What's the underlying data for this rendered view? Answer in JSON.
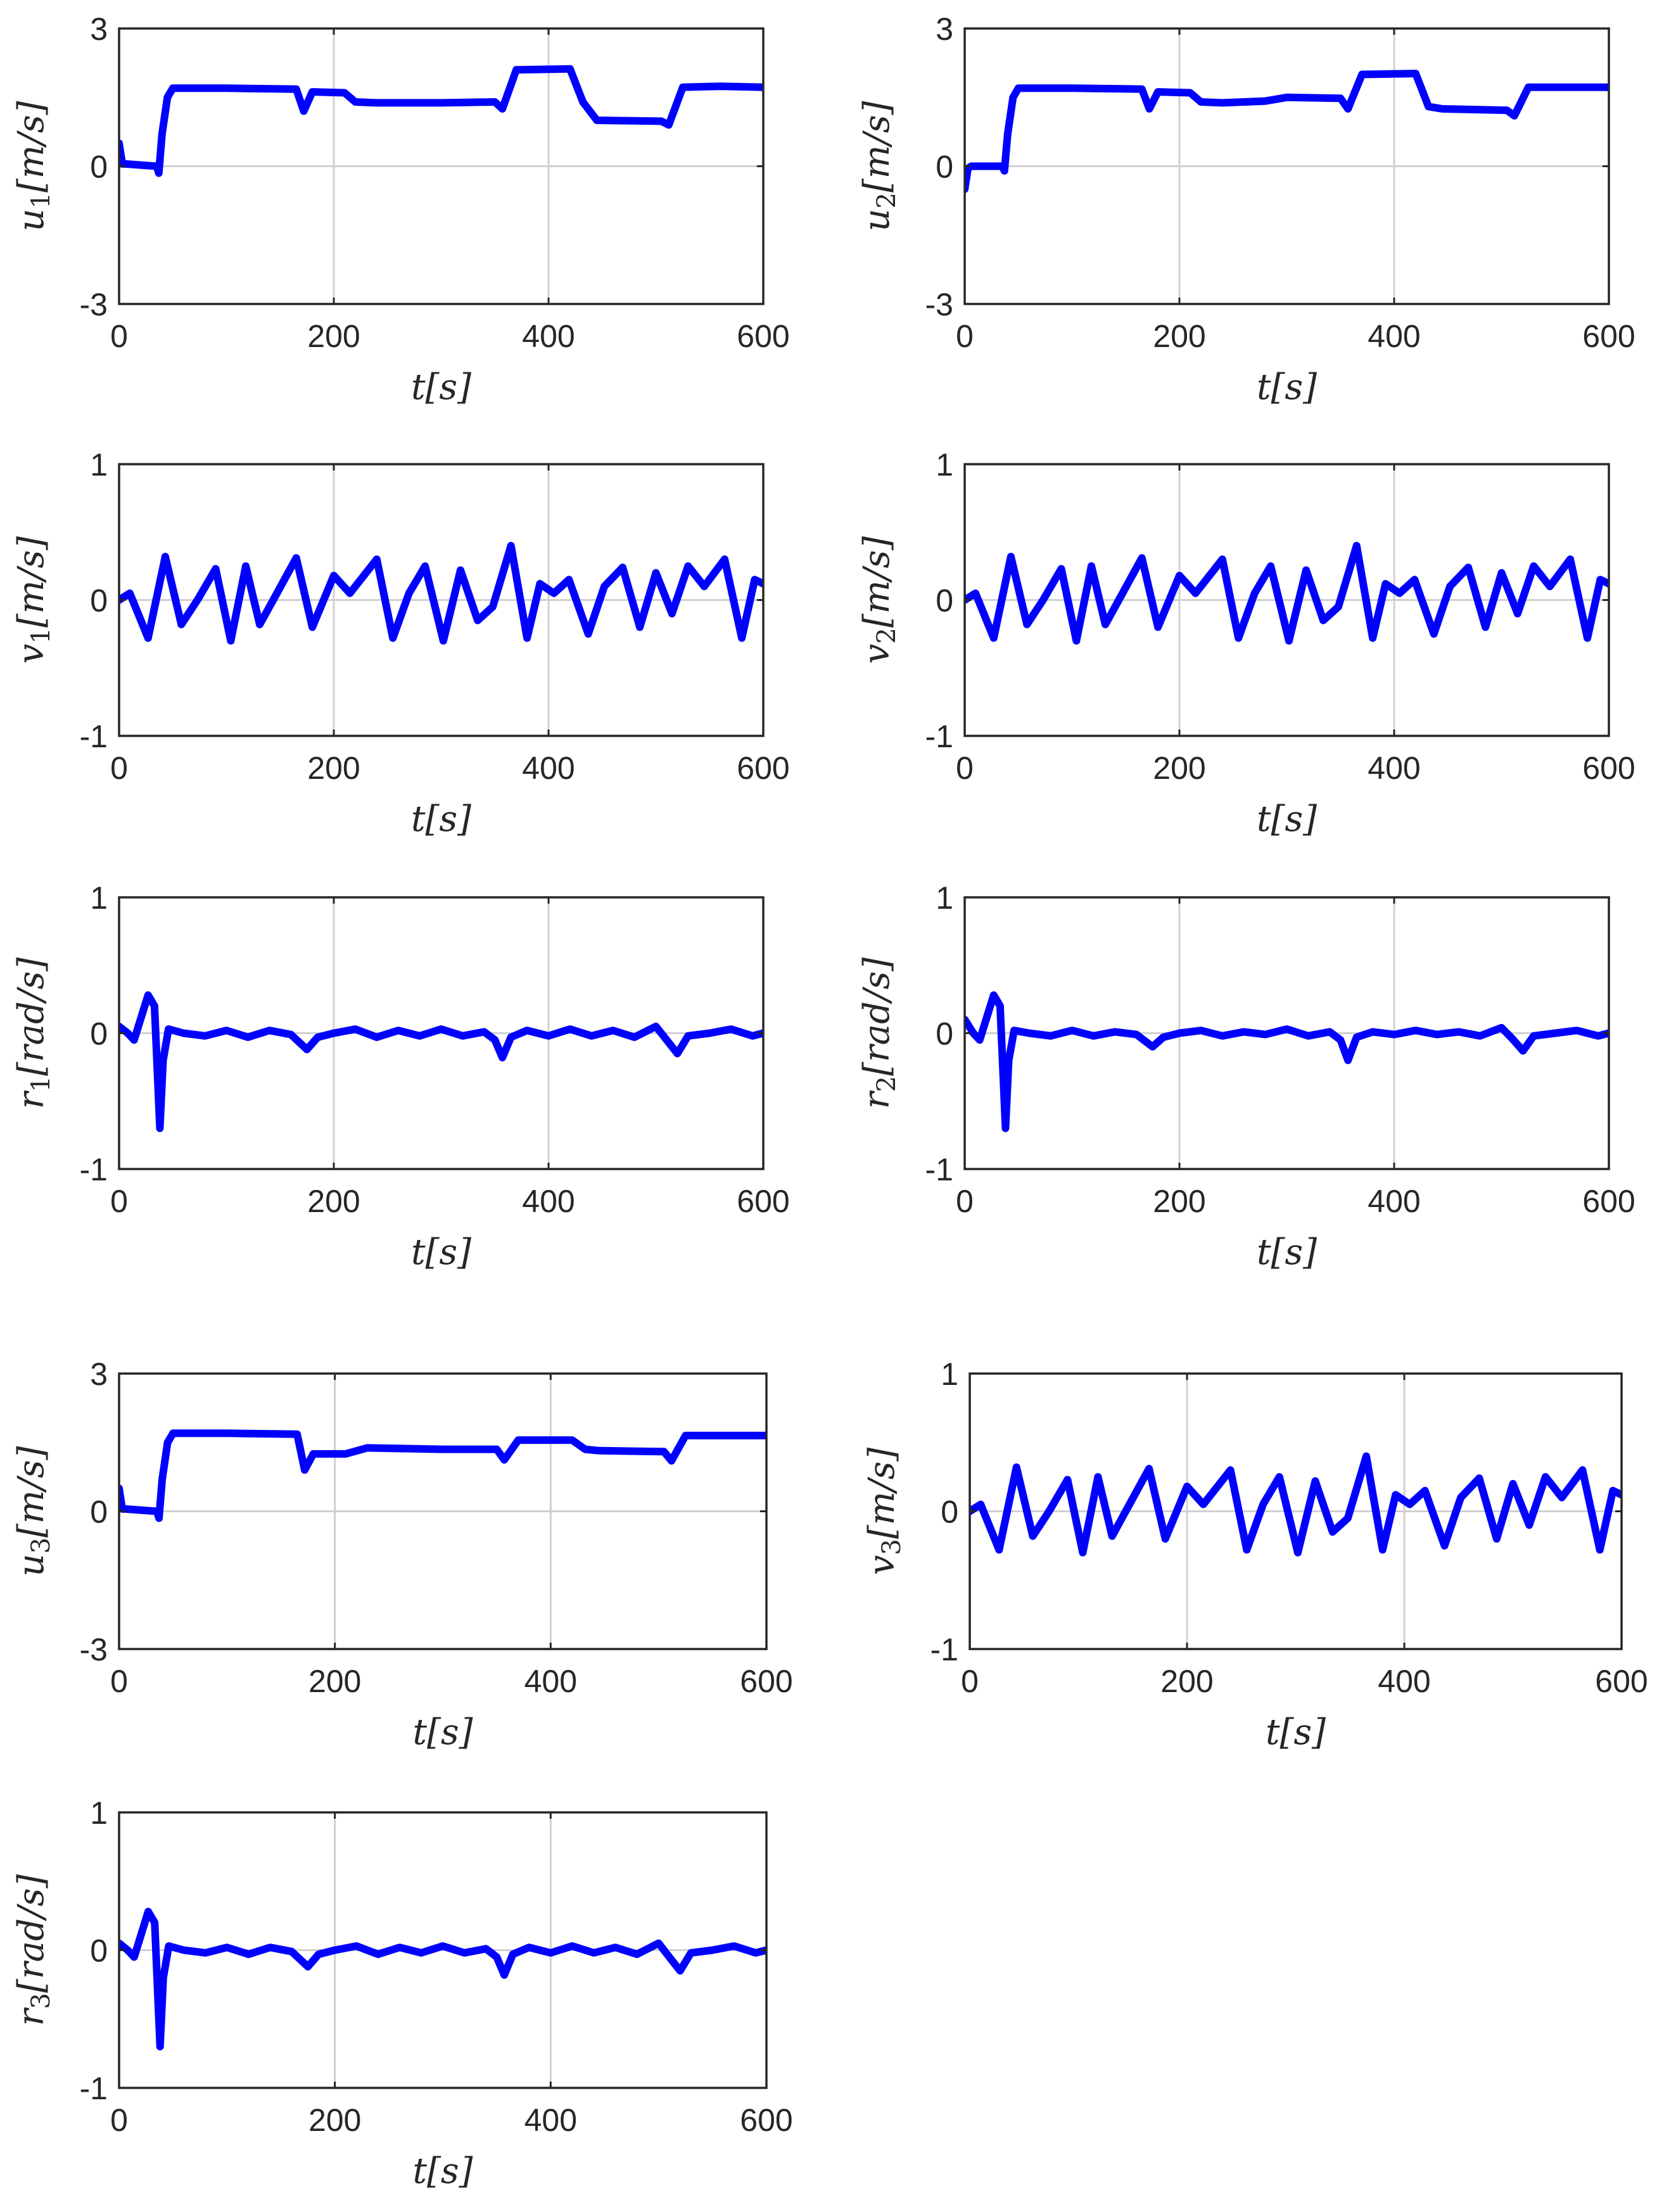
{
  "colors": {
    "series": "#0000ff",
    "axes": "#262626",
    "grid": "#d0d0d0"
  },
  "chart_data": [
    {
      "type": "line",
      "xlabel": "t[s]",
      "ylabel": {
        "sym": "u",
        "sub": "1",
        "unit": "[m/s]"
      },
      "xlim": [
        0,
        600
      ],
      "ylim": [
        -3,
        3
      ],
      "xticks": [
        0,
        200,
        400,
        600
      ],
      "yticks": [
        -3,
        0,
        3
      ],
      "grid": true,
      "series": [
        {
          "x": [
            0,
            3,
            6,
            35,
            37,
            40,
            45,
            50,
            100,
            165,
            172,
            180,
            210,
            220,
            240,
            300,
            350,
            357,
            370,
            420,
            432,
            445,
            505,
            512,
            525,
            560,
            600
          ],
          "y": [
            0.5,
            0.05,
            0.05,
            0.0,
            -0.15,
            0.7,
            1.5,
            1.7,
            1.7,
            1.68,
            1.2,
            1.62,
            1.6,
            1.4,
            1.38,
            1.38,
            1.4,
            1.25,
            2.1,
            2.12,
            1.4,
            1.0,
            0.98,
            0.9,
            1.72,
            1.74,
            1.72
          ]
        }
      ]
    },
    {
      "type": "line",
      "xlabel": "t[s]",
      "ylabel": {
        "sym": "u",
        "sub": "2",
        "unit": "[m/s]"
      },
      "xlim": [
        0,
        600
      ],
      "ylim": [
        -3,
        3
      ],
      "xticks": [
        0,
        200,
        400,
        600
      ],
      "yticks": [
        -3,
        0,
        3
      ],
      "grid": true,
      "series": [
        {
          "x": [
            0,
            3,
            6,
            35,
            37,
            40,
            45,
            50,
            100,
            165,
            172,
            180,
            210,
            220,
            240,
            280,
            300,
            350,
            357,
            370,
            420,
            432,
            445,
            505,
            512,
            525,
            560,
            600
          ],
          "y": [
            -0.5,
            -0.05,
            0.0,
            0.0,
            -0.1,
            0.7,
            1.5,
            1.7,
            1.7,
            1.68,
            1.25,
            1.62,
            1.6,
            1.4,
            1.38,
            1.42,
            1.5,
            1.48,
            1.25,
            2.0,
            2.02,
            1.3,
            1.25,
            1.22,
            1.1,
            1.72,
            1.72,
            1.72
          ]
        }
      ]
    },
    {
      "type": "line",
      "xlabel": "t[s]",
      "ylabel": {
        "sym": "v",
        "sub": "1",
        "unit": "[m/s]"
      },
      "xlim": [
        0,
        600
      ],
      "ylim": [
        -1,
        1
      ],
      "xticks": [
        0,
        200,
        400,
        600
      ],
      "yticks": [
        -1,
        0,
        1
      ],
      "grid": true,
      "series": [
        {
          "x": [
            0,
            10,
            27,
            43,
            58,
            73,
            90,
            104,
            118,
            131,
            147,
            165,
            180,
            200,
            215,
            240,
            255,
            270,
            285,
            302,
            318,
            334,
            348,
            365,
            380,
            392,
            405,
            419,
            437,
            452,
            469,
            485,
            500,
            515,
            530,
            545,
            564,
            580,
            592,
            600
          ],
          "y": [
            0,
            0.05,
            -0.28,
            0.32,
            -0.18,
            0.0,
            0.23,
            -0.3,
            0.25,
            -0.18,
            0.05,
            0.31,
            -0.2,
            0.18,
            0.05,
            0.3,
            -0.28,
            0.05,
            0.25,
            -0.3,
            0.22,
            -0.15,
            -0.05,
            0.4,
            -0.28,
            0.12,
            0.05,
            0.15,
            -0.25,
            0.1,
            0.24,
            -0.2,
            0.2,
            -0.1,
            0.25,
            0.1,
            0.3,
            -0.28,
            0.15,
            0.12
          ]
        }
      ]
    },
    {
      "type": "line",
      "xlabel": "t[s]",
      "ylabel": {
        "sym": "v",
        "sub": "2",
        "unit": "[m/s]"
      },
      "xlim": [
        0,
        600
      ],
      "ylim": [
        -1,
        1
      ],
      "xticks": [
        0,
        200,
        400,
        600
      ],
      "yticks": [
        -1,
        0,
        1
      ],
      "grid": true,
      "series": [
        {
          "x": [
            0,
            10,
            27,
            43,
            58,
            73,
            90,
            104,
            118,
            131,
            147,
            165,
            180,
            200,
            215,
            240,
            255,
            270,
            285,
            302,
            318,
            334,
            348,
            365,
            380,
            392,
            405,
            419,
            437,
            452,
            469,
            485,
            500,
            515,
            530,
            545,
            564,
            580,
            592,
            600
          ],
          "y": [
            0,
            0.05,
            -0.28,
            0.32,
            -0.18,
            0.0,
            0.23,
            -0.3,
            0.25,
            -0.18,
            0.05,
            0.31,
            -0.2,
            0.18,
            0.05,
            0.3,
            -0.28,
            0.05,
            0.25,
            -0.3,
            0.22,
            -0.15,
            -0.05,
            0.4,
            -0.28,
            0.12,
            0.05,
            0.15,
            -0.25,
            0.1,
            0.24,
            -0.2,
            0.2,
            -0.1,
            0.25,
            0.1,
            0.3,
            -0.28,
            0.15,
            0.12
          ]
        }
      ]
    },
    {
      "type": "line",
      "xlabel": "t[s]",
      "ylabel": {
        "sym": "r",
        "sub": "1",
        "unit": "[rad/s]"
      },
      "xlim": [
        0,
        600
      ],
      "ylim": [
        -1,
        1
      ],
      "xticks": [
        0,
        200,
        400,
        600
      ],
      "yticks": [
        -1,
        0,
        1
      ],
      "grid": true,
      "series": [
        {
          "x": [
            0,
            8,
            14,
            27,
            33,
            38,
            41,
            46,
            60,
            80,
            100,
            120,
            140,
            160,
            175,
            185,
            200,
            220,
            240,
            260,
            280,
            300,
            320,
            340,
            350,
            357,
            365,
            380,
            400,
            420,
            440,
            460,
            480,
            500,
            510,
            520,
            530,
            550,
            570,
            590,
            600
          ],
          "y": [
            0.05,
            0.0,
            -0.05,
            0.28,
            0.2,
            -0.7,
            -0.2,
            0.03,
            0.0,
            -0.02,
            0.02,
            -0.03,
            0.02,
            -0.01,
            -0.12,
            -0.03,
            0.0,
            0.03,
            -0.03,
            0.02,
            -0.02,
            0.03,
            -0.02,
            0.01,
            -0.05,
            -0.18,
            -0.03,
            0.02,
            -0.02,
            0.03,
            -0.02,
            0.02,
            -0.03,
            0.05,
            -0.05,
            -0.15,
            -0.02,
            0.0,
            0.03,
            -0.02,
            0.0
          ]
        }
      ]
    },
    {
      "type": "line",
      "xlabel": "t[s]",
      "ylabel": {
        "sym": "r",
        "sub": "2",
        "unit": "[rad/s]"
      },
      "xlim": [
        0,
        600
      ],
      "ylim": [
        -1,
        1
      ],
      "xticks": [
        0,
        200,
        400,
        600
      ],
      "yticks": [
        -1,
        0,
        1
      ],
      "grid": true,
      "series": [
        {
          "x": [
            0,
            8,
            14,
            27,
            33,
            38,
            41,
            46,
            60,
            80,
            100,
            120,
            140,
            160,
            175,
            185,
            200,
            220,
            240,
            260,
            280,
            300,
            320,
            340,
            350,
            357,
            365,
            380,
            400,
            420,
            440,
            460,
            480,
            500,
            510,
            520,
            530,
            550,
            570,
            590,
            600
          ],
          "y": [
            0.1,
            0.0,
            -0.05,
            0.28,
            0.2,
            -0.7,
            -0.2,
            0.02,
            0.0,
            -0.02,
            0.02,
            -0.02,
            0.01,
            -0.01,
            -0.1,
            -0.03,
            0.0,
            0.02,
            -0.02,
            0.01,
            -0.01,
            0.03,
            -0.02,
            0.01,
            -0.05,
            -0.2,
            -0.03,
            0.01,
            -0.01,
            0.02,
            -0.01,
            0.01,
            -0.02,
            0.04,
            -0.04,
            -0.13,
            -0.02,
            0.0,
            0.02,
            -0.02,
            0.0
          ]
        }
      ]
    },
    {
      "type": "line",
      "xlabel": "t[s]",
      "ylabel": {
        "sym": "u",
        "sub": "3",
        "unit": "[m/s]"
      },
      "xlim": [
        0,
        600
      ],
      "ylim": [
        -3,
        3
      ],
      "xticks": [
        0,
        200,
        400,
        600
      ],
      "yticks": [
        -3,
        0,
        3
      ],
      "grid": true,
      "series": [
        {
          "x": [
            0,
            3,
            6,
            35,
            37,
            40,
            45,
            50,
            100,
            165,
            172,
            180,
            210,
            230,
            300,
            350,
            357,
            370,
            420,
            432,
            445,
            505,
            512,
            525,
            560,
            600
          ],
          "y": [
            0.5,
            0.05,
            0.05,
            0.0,
            -0.15,
            0.7,
            1.5,
            1.7,
            1.7,
            1.68,
            0.9,
            1.25,
            1.25,
            1.38,
            1.35,
            1.35,
            1.12,
            1.55,
            1.55,
            1.35,
            1.32,
            1.3,
            1.1,
            1.65,
            1.65,
            1.65
          ]
        }
      ]
    },
    {
      "type": "line",
      "xlabel": "t[s]",
      "ylabel": {
        "sym": "v",
        "sub": "3",
        "unit": "[m/s]"
      },
      "xlim": [
        0,
        600
      ],
      "ylim": [
        -1,
        1
      ],
      "xticks": [
        0,
        200,
        400,
        600
      ],
      "yticks": [
        -1,
        0,
        1
      ],
      "grid": true,
      "series": [
        {
          "x": [
            0,
            10,
            27,
            43,
            58,
            73,
            90,
            104,
            118,
            131,
            147,
            165,
            180,
            200,
            215,
            240,
            255,
            270,
            285,
            302,
            318,
            334,
            348,
            365,
            380,
            392,
            405,
            419,
            437,
            452,
            469,
            485,
            500,
            515,
            530,
            545,
            564,
            580,
            592,
            600
          ],
          "y": [
            0,
            0.05,
            -0.28,
            0.32,
            -0.18,
            0.0,
            0.23,
            -0.3,
            0.25,
            -0.18,
            0.05,
            0.31,
            -0.2,
            0.18,
            0.05,
            0.3,
            -0.28,
            0.05,
            0.25,
            -0.3,
            0.22,
            -0.15,
            -0.05,
            0.4,
            -0.28,
            0.12,
            0.05,
            0.15,
            -0.25,
            0.1,
            0.24,
            -0.2,
            0.2,
            -0.1,
            0.25,
            0.1,
            0.3,
            -0.28,
            0.15,
            0.12
          ]
        }
      ]
    },
    {
      "type": "line",
      "xlabel": "t[s]",
      "ylabel": {
        "sym": "r",
        "sub": "3",
        "unit": "[rad/s]"
      },
      "xlim": [
        0,
        600
      ],
      "ylim": [
        -1,
        1
      ],
      "xticks": [
        0,
        200,
        400,
        600
      ],
      "yticks": [
        -1,
        0,
        1
      ],
      "grid": true,
      "series": [
        {
          "x": [
            0,
            8,
            14,
            27,
            33,
            38,
            41,
            46,
            60,
            80,
            100,
            120,
            140,
            160,
            175,
            185,
            200,
            220,
            240,
            260,
            280,
            300,
            320,
            340,
            350,
            357,
            365,
            380,
            400,
            420,
            440,
            460,
            480,
            500,
            510,
            520,
            530,
            550,
            570,
            590,
            600
          ],
          "y": [
            0.05,
            0.0,
            -0.05,
            0.28,
            0.2,
            -0.7,
            -0.2,
            0.03,
            0.0,
            -0.02,
            0.02,
            -0.03,
            0.02,
            -0.01,
            -0.12,
            -0.03,
            0.0,
            0.03,
            -0.03,
            0.02,
            -0.02,
            0.03,
            -0.02,
            0.01,
            -0.05,
            -0.18,
            -0.03,
            0.02,
            -0.02,
            0.03,
            -0.02,
            0.02,
            -0.03,
            0.05,
            -0.05,
            -0.15,
            -0.02,
            0.0,
            0.03,
            -0.02,
            0.0
          ]
        }
      ]
    }
  ]
}
